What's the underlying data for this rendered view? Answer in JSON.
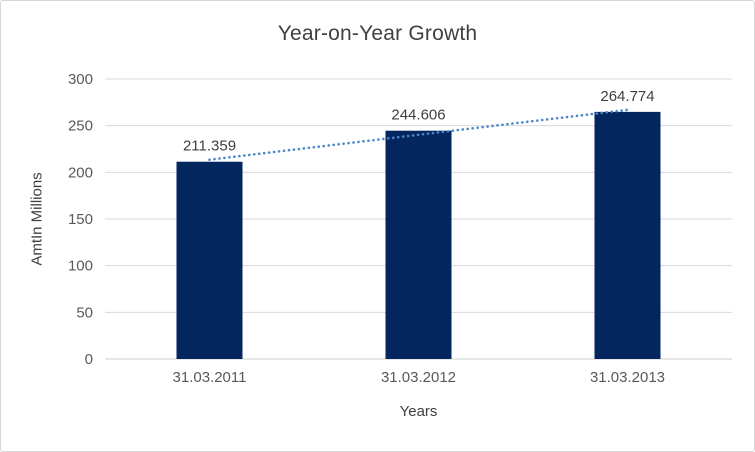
{
  "window": {
    "background": "#ffffff",
    "border_color": "#d6d6d6"
  },
  "chart_data": {
    "type": "bar",
    "title": "Year-on-Year Growth",
    "xlabel": "Years",
    "ylabel": "AmtIn Millions",
    "categories": [
      "31.03.2011",
      "31.03.2012",
      "31.03.2013"
    ],
    "values": [
      211.359,
      244.606,
      264.774
    ],
    "data_labels": [
      "211.359",
      "244.606",
      "264.774"
    ],
    "ylim": [
      0,
      300
    ],
    "yticks": [
      0,
      50,
      100,
      150,
      200,
      250,
      300
    ],
    "grid": true,
    "legend": "none",
    "bar_color": "#04265e",
    "trendline": {
      "type": "linear",
      "style": "dotted",
      "color": "#4a86c8"
    },
    "colors": {
      "gridline": "#d9d9d9",
      "axis_line": "#cfcfcf",
      "tick_text": "#595959",
      "data_label_text": "#404040",
      "title_text": "#404040"
    }
  }
}
